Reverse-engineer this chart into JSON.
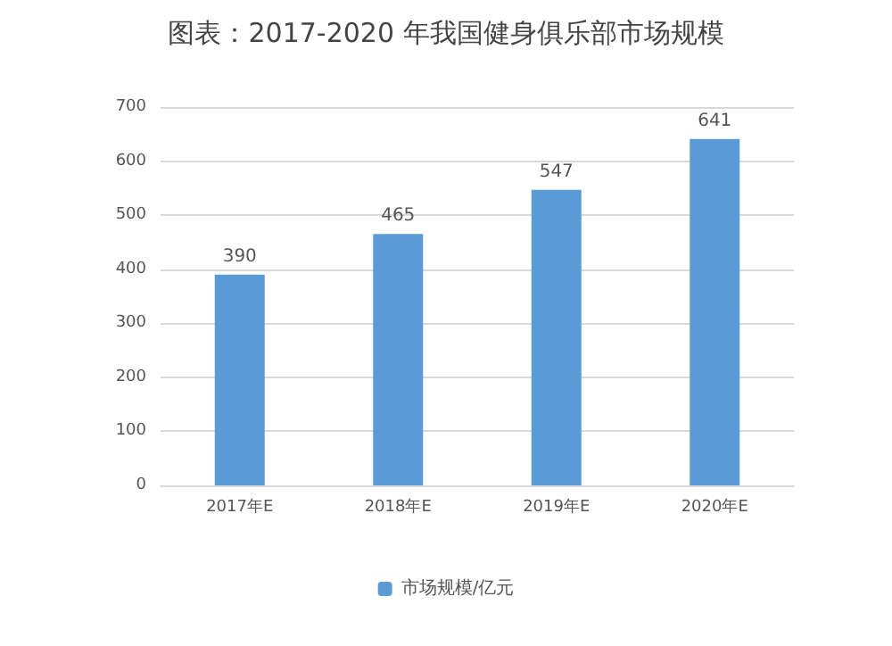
{
  "chart_data": {
    "type": "bar",
    "title": "图表：2017-2020 年我国健身俱乐部市场规模",
    "categories": [
      "2017年E",
      "2018年E",
      "2019年E",
      "2020年E"
    ],
    "series": [
      {
        "name": "市场规模/亿元",
        "color": "#5b9bd5",
        "values": [
          390,
          465,
          547,
          641
        ]
      }
    ],
    "data_labels": true,
    "ylim": [
      0,
      700
    ],
    "yticks": [
      0,
      100,
      200,
      300,
      400,
      500,
      600,
      700
    ],
    "grid": "y",
    "legend": "bottom"
  }
}
